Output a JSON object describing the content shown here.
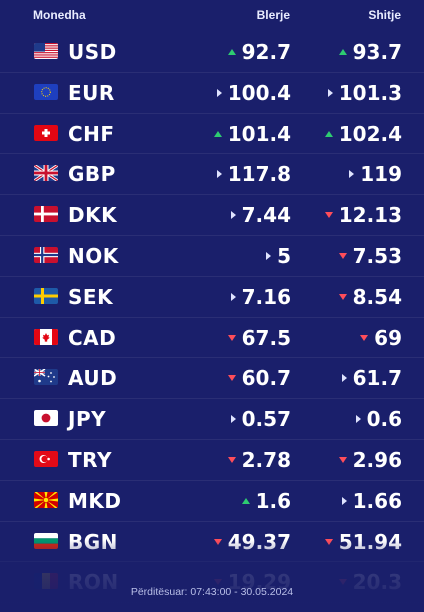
{
  "header": {
    "currency_label": "Monedha",
    "buy_label": "Blerje",
    "sell_label": "Shitje"
  },
  "colors": {
    "background": "#1a1f6b",
    "up": "#2ecc71",
    "down": "#ff4d5a",
    "same": "#dfe3ff"
  },
  "rates": [
    {
      "code": "USD",
      "flag": "flag-us-icon",
      "buy": "92.7",
      "buy_trend": "up",
      "sell": "93.7",
      "sell_trend": "up"
    },
    {
      "code": "EUR",
      "flag": "flag-eu-icon",
      "buy": "100.4",
      "buy_trend": "same",
      "sell": "101.3",
      "sell_trend": "same"
    },
    {
      "code": "CHF",
      "flag": "flag-ch-icon",
      "buy": "101.4",
      "buy_trend": "up",
      "sell": "102.4",
      "sell_trend": "up"
    },
    {
      "code": "GBP",
      "flag": "flag-gb-icon",
      "buy": "117.8",
      "buy_trend": "same",
      "sell": "119",
      "sell_trend": "same"
    },
    {
      "code": "DKK",
      "flag": "flag-dk-icon",
      "buy": "7.44",
      "buy_trend": "same",
      "sell": "12.13",
      "sell_trend": "down"
    },
    {
      "code": "NOK",
      "flag": "flag-no-icon",
      "buy": "5",
      "buy_trend": "same",
      "sell": "7.53",
      "sell_trend": "down"
    },
    {
      "code": "SEK",
      "flag": "flag-se-icon",
      "buy": "7.16",
      "buy_trend": "same",
      "sell": "8.54",
      "sell_trend": "down"
    },
    {
      "code": "CAD",
      "flag": "flag-ca-icon",
      "buy": "67.5",
      "buy_trend": "down",
      "sell": "69",
      "sell_trend": "down"
    },
    {
      "code": "AUD",
      "flag": "flag-au-icon",
      "buy": "60.7",
      "buy_trend": "down",
      "sell": "61.7",
      "sell_trend": "same"
    },
    {
      "code": "JPY",
      "flag": "flag-jp-icon",
      "buy": "0.57",
      "buy_trend": "same",
      "sell": "0.6",
      "sell_trend": "same"
    },
    {
      "code": "TRY",
      "flag": "flag-tr-icon",
      "buy": "2.78",
      "buy_trend": "down",
      "sell": "2.96",
      "sell_trend": "down"
    },
    {
      "code": "MKD",
      "flag": "flag-mk-icon",
      "buy": "1.6",
      "buy_trend": "up",
      "sell": "1.66",
      "sell_trend": "same"
    },
    {
      "code": "BGN",
      "flag": "flag-bg-icon",
      "buy": "49.37",
      "buy_trend": "down",
      "sell": "51.94",
      "sell_trend": "down"
    },
    {
      "code": "RON",
      "flag": "flag-ro-icon",
      "buy": "19.29",
      "buy_trend": "down",
      "sell": "20.3",
      "sell_trend": "down"
    }
  ],
  "footer": {
    "updated": "Përditësuar: 07:43:00 - 30.05.2024"
  }
}
